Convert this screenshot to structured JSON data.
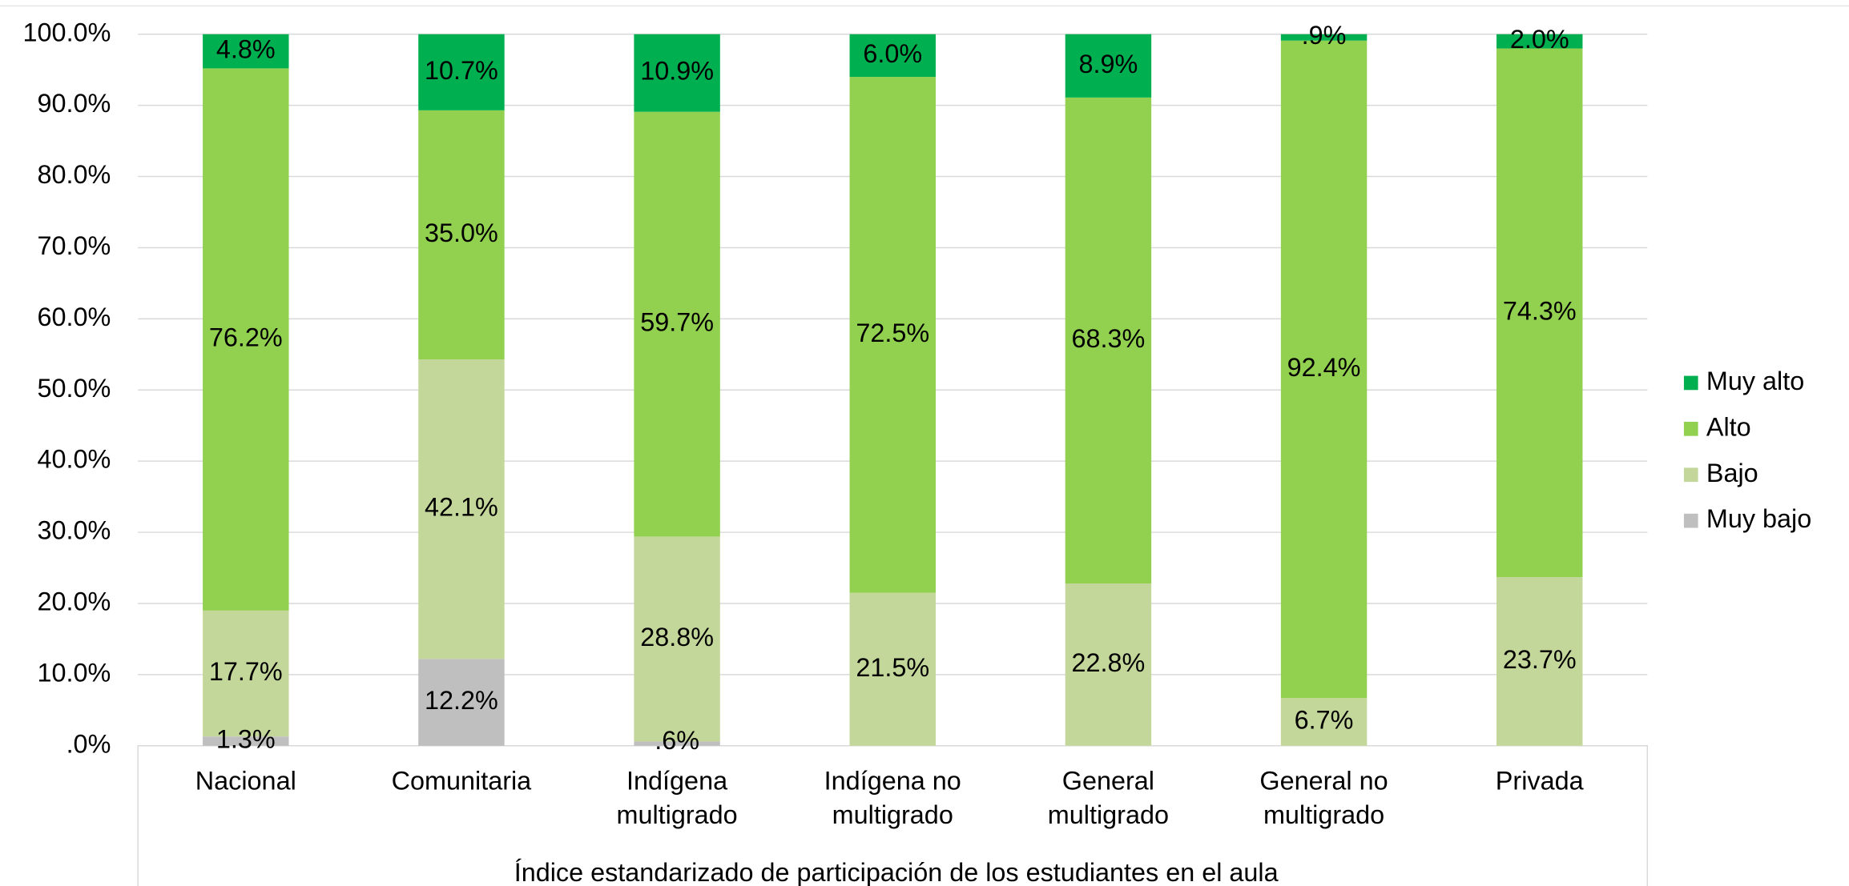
{
  "chart_data": {
    "type": "stacked_bar",
    "x_label": "Índice estandarizado de participación de los estudiantes en el aula",
    "categories": [
      "Nacional",
      "Comunitaria",
      "Indígena multigrado",
      "Indígena no multigrado",
      "General multigrado",
      "General no multigrado",
      "Privada"
    ],
    "series": [
      {
        "name": "Muy bajo",
        "color": "#bfbfbf",
        "values": [
          1.3,
          12.2,
          0.6,
          null,
          null,
          null,
          null
        ],
        "value_labels": [
          "1.3%",
          "12.2%",
          ".6%",
          null,
          null,
          null,
          null
        ]
      },
      {
        "name": "Bajo",
        "color": "#c4d79b",
        "values": [
          17.7,
          42.1,
          28.8,
          21.5,
          22.8,
          6.7,
          23.7
        ],
        "value_labels": [
          "17.7%",
          "42.1%",
          "28.8%",
          "21.5%",
          "22.8%",
          "6.7%",
          "23.7%"
        ]
      },
      {
        "name": "Alto",
        "color": "#92d050",
        "values": [
          76.2,
          35.0,
          59.7,
          72.5,
          68.3,
          92.4,
          74.3
        ],
        "value_labels": [
          "76.2%",
          "35.0%",
          "59.7%",
          "72.5%",
          "68.3%",
          "92.4%",
          "74.3%"
        ]
      },
      {
        "name": "Muy alto",
        "color": "#00b050",
        "values": [
          4.8,
          10.7,
          10.9,
          6.0,
          8.9,
          0.9,
          2.0
        ],
        "value_labels": [
          "4.8%",
          "10.7%",
          "10.9%",
          "6.0%",
          "8.9%",
          ".9%",
          "2.0%"
        ]
      }
    ],
    "ylim": [
      0,
      100
    ],
    "yticks": [
      {
        "value": 0,
        "label": ".0%"
      },
      {
        "value": 10,
        "label": "10.0%"
      },
      {
        "value": 20,
        "label": "20.0%"
      },
      {
        "value": 30,
        "label": "30.0%"
      },
      {
        "value": 40,
        "label": "40.0%"
      },
      {
        "value": 50,
        "label": "50.0%"
      },
      {
        "value": 60,
        "label": "60.0%"
      },
      {
        "value": 70,
        "label": "70.0%"
      },
      {
        "value": 80,
        "label": "80.0%"
      },
      {
        "value": 90,
        "label": "90.0%"
      },
      {
        "value": 100,
        "label": "100.0%"
      }
    ],
    "grid": true,
    "legend": "right"
  }
}
